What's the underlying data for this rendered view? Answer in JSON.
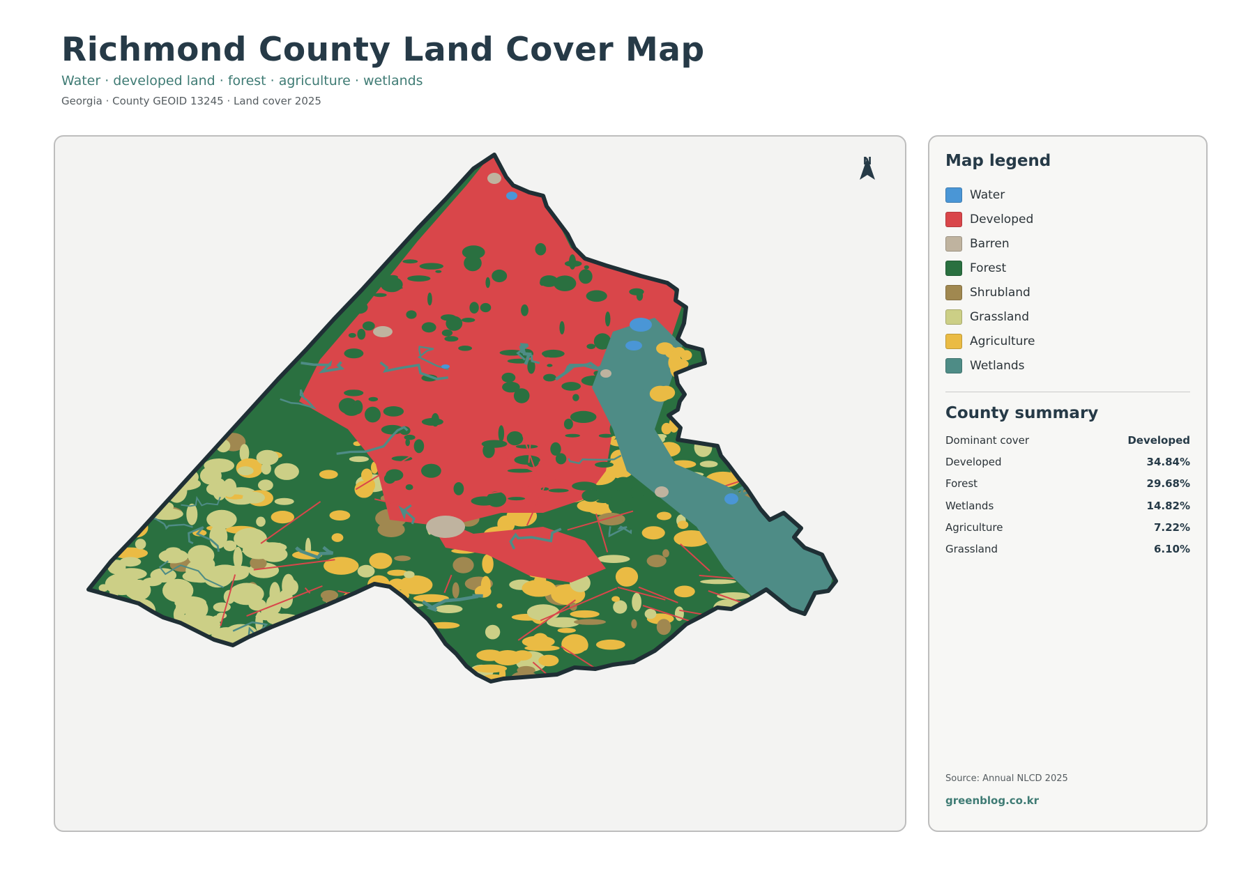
{
  "header": {
    "title": "Richmond County Land Cover Map",
    "subtitle": "Water · developed land · forest · agriculture · wetlands",
    "meta": "Georgia · County GEOID 13245 · Land cover 2025"
  },
  "map": {
    "north_label": "N",
    "colors": {
      "water": "#4a96d6",
      "developed": "#d9464a",
      "barren": "#bfb39f",
      "forest": "#2a7040",
      "shrubland": "#a08850",
      "grassland": "#cccf86",
      "agriculture": "#eabb44",
      "wetlands": "#4e8c86",
      "boundary": "#1f2f35"
    }
  },
  "legend": {
    "title": "Map legend",
    "items": [
      {
        "label": "Water",
        "color": "#4a96d6"
      },
      {
        "label": "Developed",
        "color": "#d9464a"
      },
      {
        "label": "Barren",
        "color": "#bfb39f"
      },
      {
        "label": "Forest",
        "color": "#2a7040"
      },
      {
        "label": "Shrubland",
        "color": "#a08850"
      },
      {
        "label": "Grassland",
        "color": "#cccf86"
      },
      {
        "label": "Agriculture",
        "color": "#eabb44"
      },
      {
        "label": "Wetlands",
        "color": "#4e8c86"
      }
    ]
  },
  "summary": {
    "title": "County summary",
    "rows": [
      {
        "label": "Dominant cover",
        "value": "Developed"
      },
      {
        "label": "Developed",
        "value": "34.84%"
      },
      {
        "label": "Forest",
        "value": "29.68%"
      },
      {
        "label": "Wetlands",
        "value": "14.82%"
      },
      {
        "label": "Agriculture",
        "value": "7.22%"
      },
      {
        "label": "Grassland",
        "value": "6.10%"
      }
    ]
  },
  "footer": {
    "source": "Source: Annual NLCD 2025",
    "site": "greenblog.co.kr"
  }
}
